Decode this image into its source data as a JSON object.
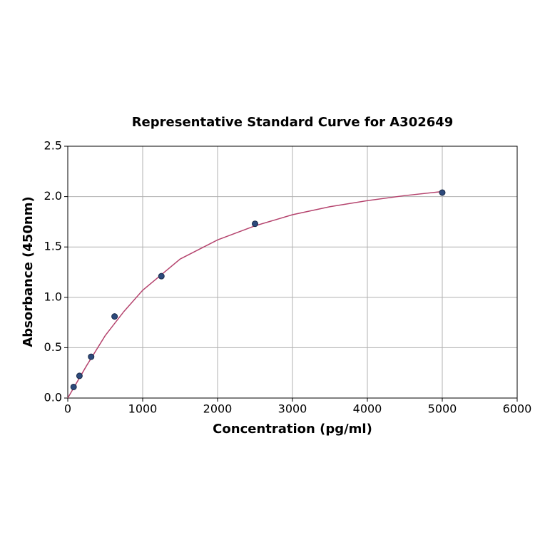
{
  "chart_data": {
    "type": "scatter",
    "title": "Representative Standard Curve for A302649",
    "x_label": "Concentration (pg/ml)",
    "y_label": "Absorbance (450nm)",
    "xlim": [
      0,
      6000
    ],
    "xticks": [
      0,
      1000,
      2000,
      3000,
      4000,
      5000,
      6000
    ],
    "ylim": [
      0,
      2.5
    ],
    "yticks": [
      {
        "value": 0,
        "label": "0.0"
      },
      {
        "value": 0.5,
        "label": "0.5"
      },
      {
        "value": 1,
        "label": "1.0"
      },
      {
        "value": 1.5,
        "label": "1.5"
      },
      {
        "value": 2,
        "label": "2.0"
      },
      {
        "value": 2.5,
        "label": "2.5"
      }
    ],
    "grid": true,
    "series": [
      {
        "type": "line",
        "color": "#b5446e",
        "x": [
          0,
          250,
          500,
          750,
          1000,
          1500,
          2000,
          2500,
          3000,
          3500,
          4000,
          4500,
          5000
        ],
        "values": [
          0.0,
          0.32,
          0.62,
          0.86,
          1.07,
          1.38,
          1.57,
          1.71,
          1.82,
          1.9,
          1.96,
          2.01,
          2.05
        ]
      },
      {
        "type": "scatter",
        "color": "#2d4a7c",
        "x": [
          78,
          156,
          312,
          625,
          1250,
          2500,
          5000
        ],
        "values": [
          0.11,
          0.22,
          0.41,
          0.81,
          1.21,
          1.73,
          2.04
        ]
      }
    ]
  }
}
